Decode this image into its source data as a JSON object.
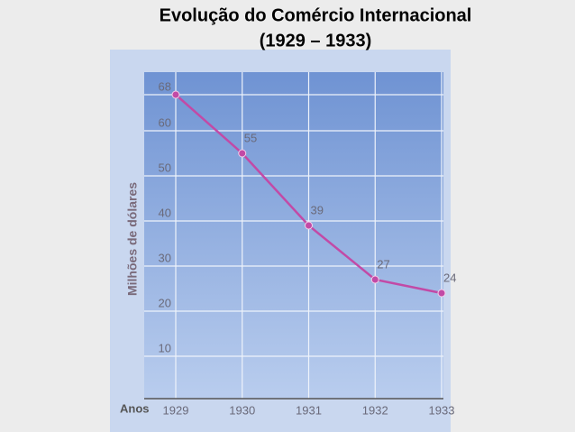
{
  "chart_data": {
    "type": "line",
    "title": "Evolução do Comércio Internacional",
    "subtitle": "(1929 – 1933)",
    "x_label": "Anos",
    "y_label": "Milhões de dólares",
    "x": [
      1929,
      1930,
      1931,
      1932,
      1933
    ],
    "series": [
      {
        "name": "Comércio Internacional",
        "color": "#c24aa6",
        "values": [
          68,
          55,
          39,
          27,
          24
        ]
      }
    ],
    "xlim": [
      1929,
      1933
    ],
    "xticks": [
      1929,
      1930,
      1931,
      1932,
      1933
    ],
    "ylim": [
      0,
      72
    ],
    "yticks": [
      10,
      20,
      30,
      40,
      50,
      60,
      68
    ],
    "grid": true
  }
}
